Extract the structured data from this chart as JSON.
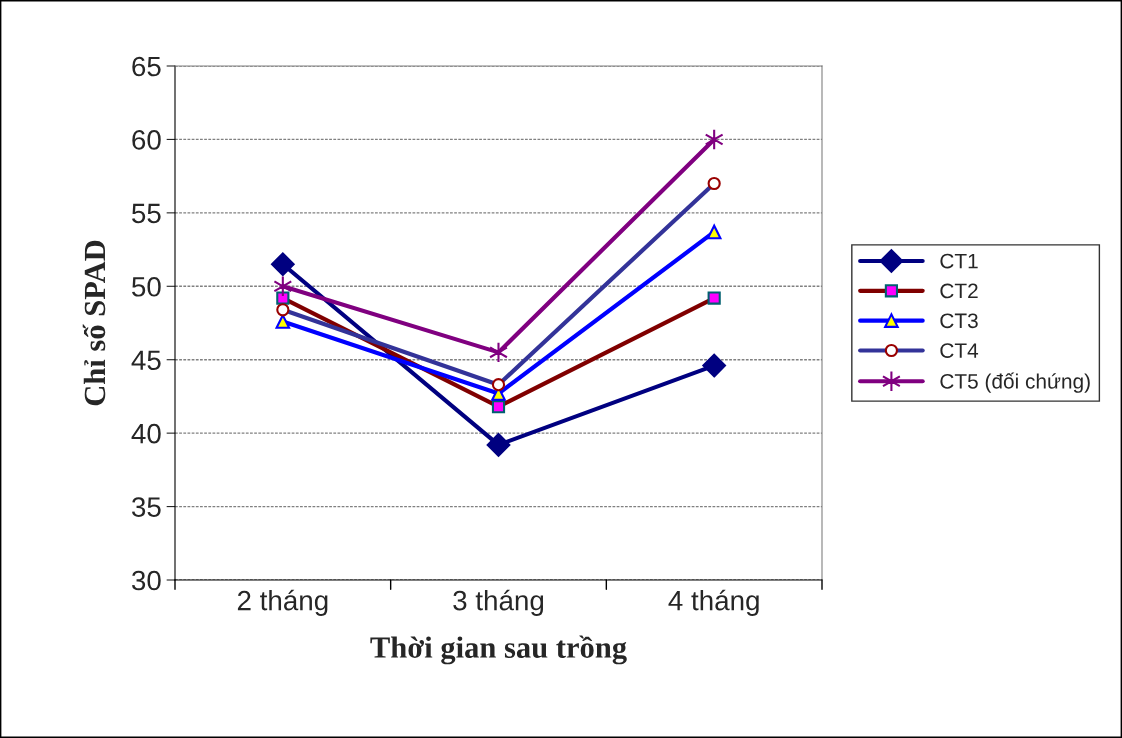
{
  "chart_data": {
    "type": "line",
    "xlabel": "Thời gian sau trồng",
    "ylabel": "Chỉ số SPAD",
    "categories": [
      "2 tháng",
      "3 tháng",
      "4 tháng"
    ],
    "series": [
      {
        "name": "CT1",
        "color": "#000080",
        "marker": "diamond",
        "values": [
          51.5,
          39.2,
          44.6
        ]
      },
      {
        "name": "CT2",
        "color": "#800000",
        "marker": "square",
        "values": [
          49.2,
          41.8,
          49.2
        ]
      },
      {
        "name": "CT3",
        "color": "#0000ff",
        "marker": "triangle",
        "values": [
          47.6,
          42.7,
          53.7
        ]
      },
      {
        "name": "CT4",
        "color": "#333399",
        "marker": "circle",
        "values": [
          48.4,
          43.3,
          57.0
        ]
      },
      {
        "name": "CT5 (đối chứng)",
        "color": "#800080",
        "marker": "cross",
        "values": [
          50.0,
          45.5,
          60.0
        ]
      }
    ],
    "ylim": [
      30,
      65
    ],
    "yticks": [
      30,
      35,
      40,
      45,
      50,
      55,
      60,
      65
    ],
    "grid": "y",
    "legend": "right"
  }
}
